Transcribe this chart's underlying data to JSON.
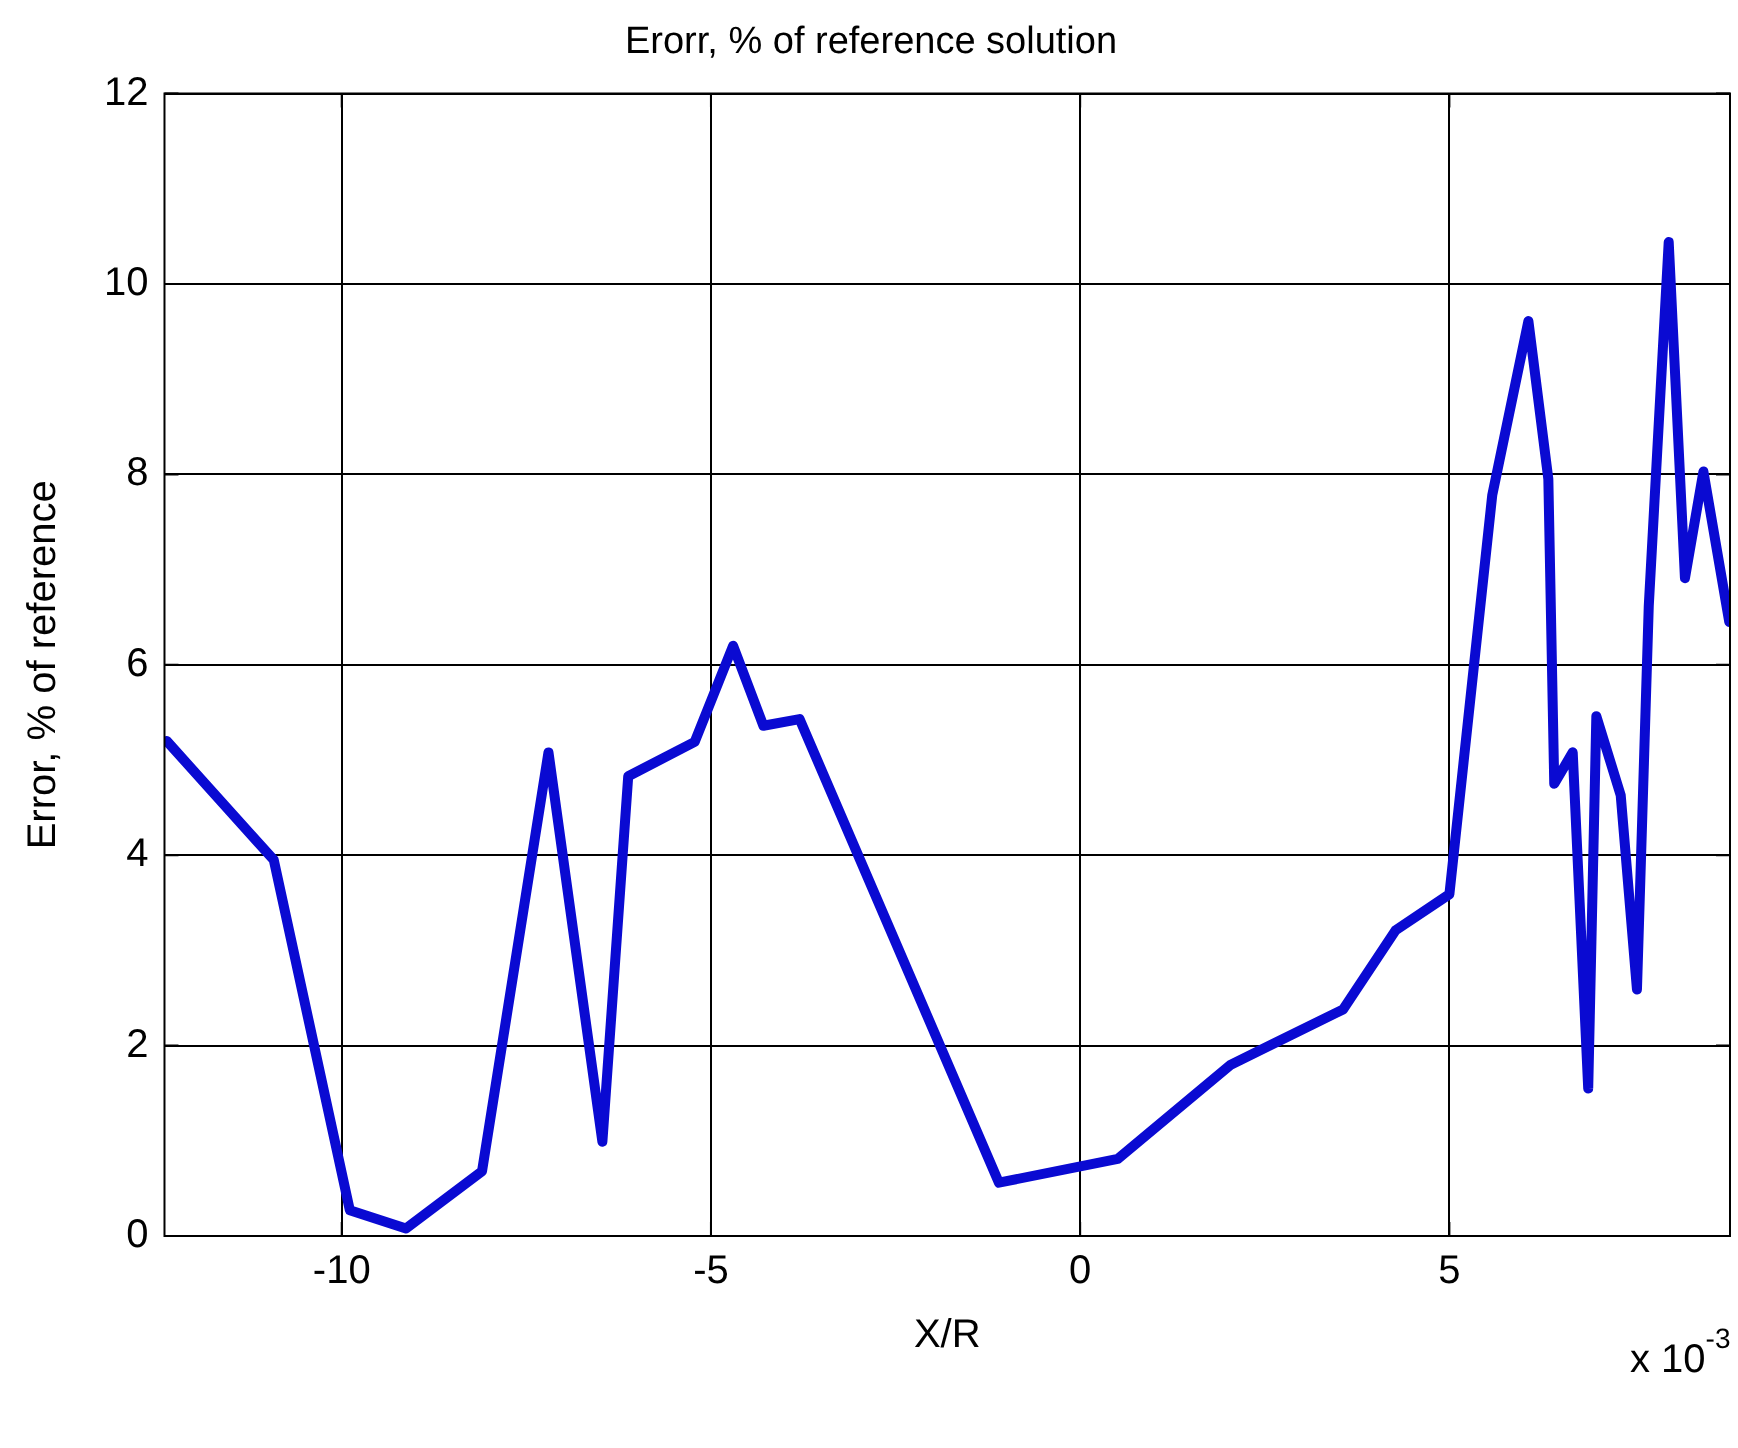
{
  "chart_data": {
    "type": "line",
    "title": "Erorr, % of reference solution",
    "xlabel": "X/R",
    "ylabel": "Error, % of reference",
    "x": [
      -12.37,
      -10.92,
      -9.89,
      -9.13,
      -8.1,
      -7.2,
      -6.47,
      -6.12,
      -5.22,
      -4.7,
      -4.29,
      -3.8,
      -1.1,
      0.51,
      2.04,
      3.56,
      4.27,
      5.0,
      5.58,
      6.07,
      6.34,
      6.42,
      6.67,
      6.88,
      6.99,
      7.32,
      7.54,
      7.7,
      7.97,
      8.19,
      8.44,
      8.79
    ],
    "series": [
      {
        "color": "#0a0ad2",
        "values": [
          5.2,
          3.95,
          0.27,
          0.08,
          0.68,
          5.08,
          0.99,
          4.83,
          5.19,
          6.2,
          5.36,
          5.43,
          0.56,
          0.81,
          1.8,
          2.38,
          3.21,
          3.59,
          7.78,
          9.61,
          7.95,
          4.75,
          5.08,
          1.55,
          5.46,
          4.63,
          2.59,
          6.62,
          10.44,
          6.91,
          8.03,
          6.45
        ]
      }
    ],
    "xlim": [
      -12.4,
      8.8
    ],
    "xticks": [
      -10,
      -5,
      0,
      5
    ],
    "ylim": [
      0,
      12
    ],
    "yticks": [
      0,
      2,
      4,
      6,
      8,
      10,
      12
    ],
    "grid": true,
    "line_style": "solid",
    "marker": "none",
    "annotations": [
      "x 10$^{-3}$"
    ]
  }
}
